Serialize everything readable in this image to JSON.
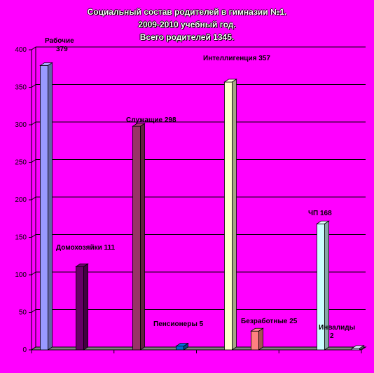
{
  "title_lines": [
    "Социальный состав родителей в гимназии №1.",
    "2009-2010 учебный год.",
    "Всего родителей 1345."
  ],
  "chart_data": {
    "type": "bar",
    "title": "Социальный состав родителей в гимназии №1. 2009-2010 учебный год. Всего родителей 1345.",
    "categories": [
      "Рабочие",
      "Домохозяйки",
      "Служащие",
      "Пенсионеры",
      "Интеллигенция",
      "Безработные",
      "ЧП",
      "Инвалиды"
    ],
    "values": [
      379,
      111,
      298,
      5,
      357,
      25,
      168,
      2
    ],
    "data_labels": [
      [
        "Рабочие",
        "379"
      ],
      [
        "Домохозяйки 111"
      ],
      [
        "Служащие 298"
      ],
      [
        "Пенсионеры 5"
      ],
      [
        "Интеллигенция 357"
      ],
      [
        "Безработные   25"
      ],
      [
        "ЧП 168"
      ],
      [
        "Инвалиды",
        "2"
      ]
    ],
    "colors": [
      "#9999ff",
      "#660066",
      "#993366",
      "#0066cc",
      "#ffffcc",
      "#ff8080",
      "#ccffff",
      "#ccccff"
    ],
    "ylim": [
      0,
      400
    ],
    "yticks": [
      "0",
      "50",
      "100",
      "150",
      "200",
      "250",
      "300",
      "350",
      "400"
    ],
    "grid": true,
    "legend": "none"
  }
}
